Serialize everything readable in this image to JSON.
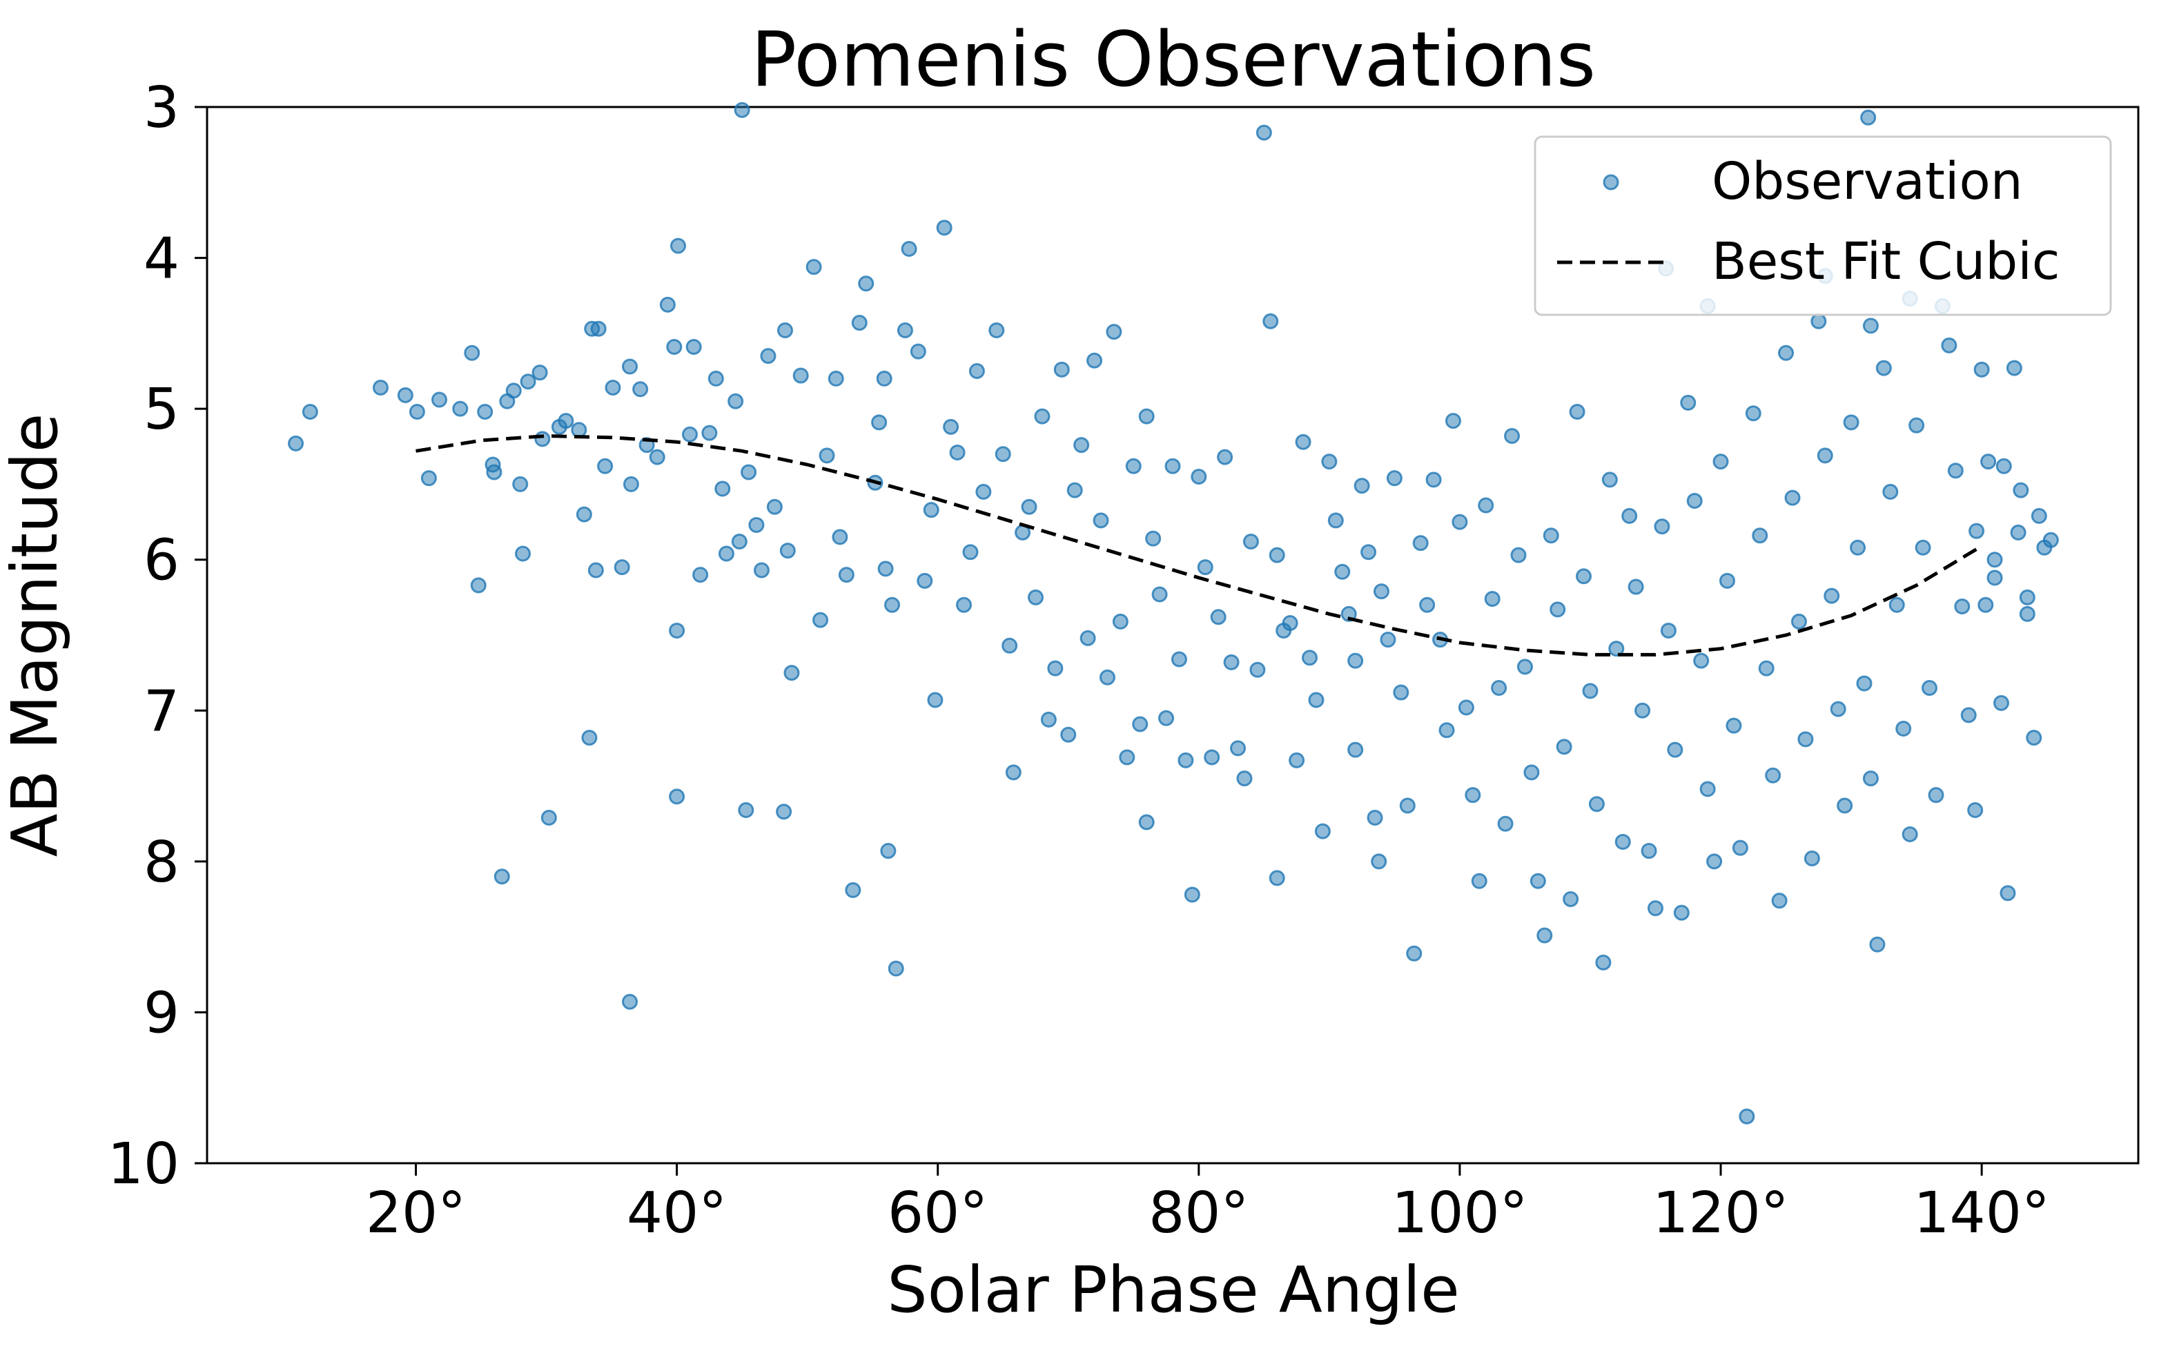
{
  "chart_data": {
    "type": "scatter",
    "title": "Pomenis Observations",
    "xlabel": "Solar Phase Angle",
    "ylabel": "AB Magnitude",
    "xlim": [
      4,
      152
    ],
    "ylim": [
      10,
      3
    ],
    "y_inverted": true,
    "x_ticks": [
      20,
      40,
      60,
      80,
      100,
      120,
      140
    ],
    "x_tick_labels": [
      "20°",
      "40°",
      "60°",
      "80°",
      "100°",
      "120°",
      "140°"
    ],
    "y_ticks": [
      3,
      4,
      5,
      6,
      7,
      8,
      9,
      10
    ],
    "y_tick_labels": [
      "3",
      "4",
      "5",
      "6",
      "7",
      "8",
      "9",
      "10"
    ],
    "grid": false,
    "legend": {
      "position": "top-right",
      "entries": [
        "Observation",
        "Best Fit Cubic"
      ]
    },
    "colors": {
      "observation": "#1f77b4",
      "fit": "#000000"
    },
    "series": [
      {
        "name": "Observation",
        "kind": "scatter",
        "points": [
          [
            10.8,
            5.23
          ],
          [
            11.9,
            5.02
          ],
          [
            17.3,
            4.86
          ],
          [
            19.2,
            4.91
          ],
          [
            20.1,
            5.02
          ],
          [
            21.0,
            5.46
          ],
          [
            21.8,
            4.94
          ],
          [
            23.4,
            5.0
          ],
          [
            24.3,
            4.63
          ],
          [
            24.8,
            6.17
          ],
          [
            25.3,
            5.02
          ],
          [
            25.9,
            5.37
          ],
          [
            26.0,
            5.42
          ],
          [
            26.6,
            8.1
          ],
          [
            27.0,
            4.95
          ],
          [
            27.5,
            4.88
          ],
          [
            28.0,
            5.5
          ],
          [
            28.2,
            5.96
          ],
          [
            28.6,
            4.82
          ],
          [
            29.5,
            4.76
          ],
          [
            29.7,
            5.2
          ],
          [
            30.2,
            7.71
          ],
          [
            31.0,
            5.12
          ],
          [
            31.5,
            5.08
          ],
          [
            32.5,
            5.14
          ],
          [
            32.9,
            5.7
          ],
          [
            33.5,
            4.47
          ],
          [
            33.8,
            6.07
          ],
          [
            33.3,
            7.18
          ],
          [
            34.0,
            4.47
          ],
          [
            34.5,
            5.38
          ],
          [
            35.1,
            4.86
          ],
          [
            35.8,
            6.05
          ],
          [
            36.4,
            4.72
          ],
          [
            36.5,
            5.5
          ],
          [
            36.4,
            8.93
          ],
          [
            37.2,
            4.87
          ],
          [
            37.7,
            5.24
          ],
          [
            38.5,
            5.32
          ],
          [
            39.3,
            4.31
          ],
          [
            39.8,
            4.59
          ],
          [
            40.1,
            3.92
          ],
          [
            40.0,
            6.47
          ],
          [
            40.0,
            7.57
          ],
          [
            41.0,
            5.17
          ],
          [
            41.3,
            4.59
          ],
          [
            41.8,
            6.1
          ],
          [
            42.5,
            5.16
          ],
          [
            43.0,
            4.8
          ],
          [
            43.5,
            5.53
          ],
          [
            43.8,
            5.96
          ],
          [
            44.5,
            4.95
          ],
          [
            44.8,
            5.88
          ],
          [
            45.0,
            3.02
          ],
          [
            45.5,
            5.42
          ],
          [
            45.3,
            7.66
          ],
          [
            46.1,
            5.77
          ],
          [
            46.5,
            6.07
          ],
          [
            47.0,
            4.65
          ],
          [
            47.5,
            5.65
          ],
          [
            48.3,
            4.48
          ],
          [
            48.5,
            5.94
          ],
          [
            48.8,
            6.75
          ],
          [
            48.2,
            7.67
          ],
          [
            49.5,
            4.78
          ],
          [
            50.5,
            4.06
          ],
          [
            51.0,
            6.4
          ],
          [
            51.5,
            5.31
          ],
          [
            52.2,
            4.8
          ],
          [
            52.5,
            5.85
          ],
          [
            53.0,
            6.1
          ],
          [
            53.5,
            8.19
          ],
          [
            54.0,
            4.43
          ],
          [
            54.5,
            4.17
          ],
          [
            55.2,
            5.49
          ],
          [
            55.5,
            5.09
          ],
          [
            55.9,
            4.8
          ],
          [
            56.0,
            6.06
          ],
          [
            56.2,
            7.93
          ],
          [
            56.5,
            6.3
          ],
          [
            56.8,
            8.71
          ],
          [
            57.5,
            4.48
          ],
          [
            57.8,
            3.94
          ],
          [
            58.5,
            4.62
          ],
          [
            59.0,
            6.14
          ],
          [
            59.5,
            5.67
          ],
          [
            59.8,
            6.93
          ],
          [
            60.5,
            3.8
          ],
          [
            61.0,
            5.12
          ],
          [
            61.5,
            5.29
          ],
          [
            62.0,
            6.3
          ],
          [
            62.5,
            5.95
          ],
          [
            63.0,
            4.75
          ],
          [
            63.5,
            5.55
          ],
          [
            64.5,
            4.48
          ],
          [
            65.0,
            5.3
          ],
          [
            65.5,
            6.57
          ],
          [
            65.8,
            7.41
          ],
          [
            66.5,
            5.82
          ],
          [
            67.0,
            5.65
          ],
          [
            67.5,
            6.25
          ],
          [
            68.0,
            5.05
          ],
          [
            68.5,
            7.06
          ],
          [
            69.0,
            6.72
          ],
          [
            69.5,
            4.74
          ],
          [
            70.0,
            7.16
          ],
          [
            70.5,
            5.54
          ],
          [
            71.0,
            5.24
          ],
          [
            71.5,
            6.52
          ],
          [
            72.0,
            4.68
          ],
          [
            72.5,
            5.74
          ],
          [
            73.0,
            6.78
          ],
          [
            73.5,
            4.49
          ],
          [
            74.0,
            6.41
          ],
          [
            74.5,
            7.31
          ],
          [
            75.0,
            5.38
          ],
          [
            75.5,
            7.09
          ],
          [
            76.0,
            5.05
          ],
          [
            76.5,
            5.86
          ],
          [
            76.0,
            7.74
          ],
          [
            77.0,
            6.23
          ],
          [
            77.5,
            7.05
          ],
          [
            78.0,
            5.38
          ],
          [
            78.5,
            6.66
          ],
          [
            79.0,
            7.33
          ],
          [
            79.5,
            8.22
          ],
          [
            80.0,
            5.45
          ],
          [
            80.5,
            6.05
          ],
          [
            81.0,
            7.31
          ],
          [
            81.5,
            6.38
          ],
          [
            82.0,
            5.32
          ],
          [
            82.5,
            6.68
          ],
          [
            83.0,
            7.25
          ],
          [
            83.5,
            7.45
          ],
          [
            84.0,
            5.88
          ],
          [
            84.5,
            6.73
          ],
          [
            85.0,
            3.17
          ],
          [
            85.5,
            4.42
          ],
          [
            86.0,
            5.97
          ],
          [
            86.5,
            6.47
          ],
          [
            86.0,
            8.11
          ],
          [
            87.0,
            6.42
          ],
          [
            87.5,
            7.33
          ],
          [
            88.0,
            5.22
          ],
          [
            88.5,
            6.65
          ],
          [
            89.0,
            6.93
          ],
          [
            89.5,
            7.8
          ],
          [
            90.0,
            5.35
          ],
          [
            90.5,
            5.74
          ],
          [
            91.0,
            6.08
          ],
          [
            91.5,
            6.36
          ],
          [
            92.0,
            6.67
          ],
          [
            92.0,
            7.26
          ],
          [
            92.5,
            5.51
          ],
          [
            93.0,
            5.95
          ],
          [
            93.5,
            7.71
          ],
          [
            93.8,
            8.0
          ],
          [
            94.0,
            6.21
          ],
          [
            94.5,
            6.53
          ],
          [
            95.0,
            5.46
          ],
          [
            95.5,
            6.88
          ],
          [
            96.0,
            7.63
          ],
          [
            96.5,
            8.61
          ],
          [
            97.0,
            5.89
          ],
          [
            97.5,
            6.3
          ],
          [
            98.0,
            5.47
          ],
          [
            98.5,
            6.53
          ],
          [
            99.0,
            7.13
          ],
          [
            99.5,
            5.08
          ],
          [
            100.0,
            5.75
          ],
          [
            100.5,
            6.98
          ],
          [
            101.0,
            7.56
          ],
          [
            101.5,
            8.13
          ],
          [
            102.0,
            5.64
          ],
          [
            102.5,
            6.26
          ],
          [
            103.0,
            6.85
          ],
          [
            103.5,
            7.75
          ],
          [
            104.0,
            5.18
          ],
          [
            104.5,
            5.97
          ],
          [
            105.0,
            6.71
          ],
          [
            105.5,
            7.41
          ],
          [
            106.0,
            8.13
          ],
          [
            106.5,
            8.49
          ],
          [
            107.0,
            5.84
          ],
          [
            107.5,
            6.33
          ],
          [
            108.0,
            7.24
          ],
          [
            108.5,
            8.25
          ],
          [
            109.0,
            5.02
          ],
          [
            109.5,
            6.11
          ],
          [
            110.0,
            6.87
          ],
          [
            110.5,
            7.62
          ],
          [
            111.0,
            8.67
          ],
          [
            111.5,
            5.47
          ],
          [
            112.0,
            6.59
          ],
          [
            112.5,
            7.87
          ],
          [
            113.0,
            5.71
          ],
          [
            113.5,
            6.18
          ],
          [
            114.0,
            7.0
          ],
          [
            114.5,
            7.93
          ],
          [
            115.0,
            8.31
          ],
          [
            115.5,
            5.78
          ],
          [
            116.0,
            6.47
          ],
          [
            116.5,
            7.26
          ],
          [
            117.0,
            8.34
          ],
          [
            117.5,
            4.96
          ],
          [
            118.0,
            5.61
          ],
          [
            118.5,
            6.67
          ],
          [
            119.0,
            7.52
          ],
          [
            119.5,
            8.0
          ],
          [
            120.0,
            5.35
          ],
          [
            120.5,
            6.14
          ],
          [
            121.0,
            7.1
          ],
          [
            121.5,
            7.91
          ],
          [
            122.0,
            9.69
          ],
          [
            122.5,
            5.03
          ],
          [
            123.0,
            5.84
          ],
          [
            123.5,
            6.72
          ],
          [
            124.0,
            7.43
          ],
          [
            124.5,
            8.26
          ],
          [
            125.0,
            4.63
          ],
          [
            125.5,
            5.59
          ],
          [
            126.0,
            6.41
          ],
          [
            126.5,
            7.19
          ],
          [
            127.0,
            7.98
          ],
          [
            127.5,
            4.42
          ],
          [
            128.0,
            5.31
          ],
          [
            128.5,
            6.24
          ],
          [
            129.0,
            6.99
          ],
          [
            129.5,
            7.63
          ],
          [
            130.0,
            5.09
          ],
          [
            130.5,
            5.92
          ],
          [
            131.0,
            6.82
          ],
          [
            131.5,
            7.45
          ],
          [
            132.0,
            8.55
          ],
          [
            132.5,
            4.73
          ],
          [
            133.0,
            5.55
          ],
          [
            133.5,
            6.3
          ],
          [
            134.0,
            7.12
          ],
          [
            134.5,
            7.82
          ],
          [
            135.0,
            5.11
          ],
          [
            135.5,
            5.92
          ],
          [
            136.0,
            6.85
          ],
          [
            136.5,
            7.56
          ],
          [
            137.0,
            4.32
          ],
          [
            137.5,
            4.58
          ],
          [
            138.0,
            5.41
          ],
          [
            138.5,
            6.31
          ],
          [
            139.0,
            7.03
          ],
          [
            139.5,
            7.66
          ],
          [
            140.0,
            4.74
          ],
          [
            140.5,
            5.35
          ],
          [
            141.0,
            6.12
          ],
          [
            141.5,
            6.95
          ],
          [
            142.0,
            8.21
          ],
          [
            142.5,
            4.73
          ],
          [
            143.0,
            5.54
          ],
          [
            143.5,
            6.36
          ],
          [
            144.0,
            7.18
          ],
          [
            131.3,
            3.07
          ],
          [
            131.5,
            4.45
          ],
          [
            134.5,
            4.27
          ],
          [
            128.0,
            4.12
          ],
          [
            115.8,
            4.07
          ],
          [
            119.0,
            4.32
          ],
          [
            139.6,
            5.81
          ],
          [
            140.3,
            6.3
          ],
          [
            141.0,
            6.0
          ],
          [
            141.7,
            5.38
          ],
          [
            142.8,
            5.82
          ],
          [
            143.5,
            6.25
          ],
          [
            144.4,
            5.71
          ],
          [
            144.8,
            5.92
          ],
          [
            145.3,
            5.87
          ]
        ]
      },
      {
        "name": "Best Fit Cubic",
        "kind": "line",
        "style": "dashed",
        "x": [
          20,
          25,
          30,
          35,
          40,
          45,
          50,
          55,
          60,
          65,
          70,
          75,
          80,
          85,
          90,
          95,
          100,
          105,
          110,
          115,
          120,
          125,
          130,
          135,
          140
        ],
        "y": [
          5.28,
          5.21,
          5.18,
          5.19,
          5.22,
          5.28,
          5.37,
          5.48,
          5.6,
          5.73,
          5.86,
          5.99,
          6.12,
          6.24,
          6.36,
          6.46,
          6.55,
          6.6,
          6.63,
          6.63,
          6.59,
          6.5,
          6.37,
          6.17,
          5.91
        ]
      }
    ]
  }
}
